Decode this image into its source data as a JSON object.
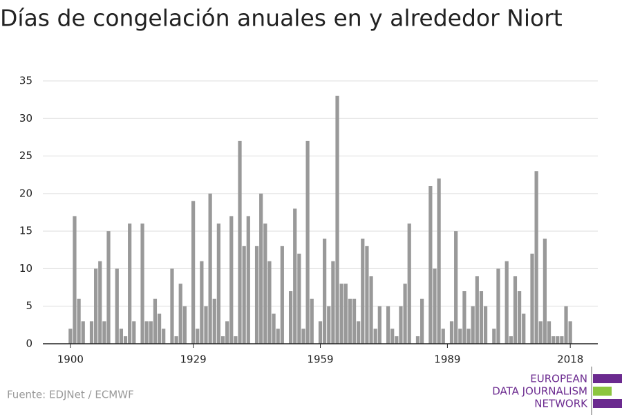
{
  "chart_data": {
    "type": "bar",
    "title": "Días de congelación anuales en y alrededor Niort",
    "source": "Fuente: EDJNet / ECMWF",
    "logo": [
      "EUROPEAN",
      "DATA JOURNALISM",
      "NETWORK"
    ],
    "color": "#999999",
    "x": [
      1900,
      1901,
      1902,
      1903,
      1904,
      1905,
      1906,
      1907,
      1908,
      1909,
      1910,
      1911,
      1912,
      1913,
      1914,
      1915,
      1916,
      1917,
      1918,
      1919,
      1920,
      1921,
      1922,
      1923,
      1924,
      1925,
      1926,
      1927,
      1928,
      1929,
      1930,
      1931,
      1932,
      1933,
      1934,
      1935,
      1936,
      1937,
      1938,
      1939,
      1940,
      1941,
      1942,
      1943,
      1944,
      1945,
      1946,
      1947,
      1948,
      1949,
      1950,
      1951,
      1952,
      1953,
      1954,
      1955,
      1956,
      1957,
      1958,
      1959,
      1960,
      1961,
      1962,
      1963,
      1964,
      1965,
      1966,
      1967,
      1968,
      1969,
      1970,
      1971,
      1972,
      1973,
      1974,
      1975,
      1976,
      1977,
      1978,
      1979,
      1980,
      1981,
      1982,
      1983,
      1984,
      1985,
      1986,
      1987,
      1988,
      1989,
      1990,
      1991,
      1992,
      1993,
      1994,
      1995,
      1996,
      1997,
      1998,
      1999,
      2000,
      2001,
      2002,
      2003,
      2004,
      2005,
      2006,
      2007,
      2008,
      2009,
      2010,
      2011,
      2012,
      2013,
      2014,
      2015,
      2016,
      2017,
      2018
    ],
    "values": [
      2,
      17,
      6,
      3,
      0,
      3,
      10,
      11,
      3,
      15,
      0,
      10,
      2,
      1,
      16,
      3,
      0,
      16,
      3,
      3,
      6,
      4,
      2,
      0,
      10,
      1,
      8,
      5,
      0,
      19,
      2,
      11,
      5,
      20,
      6,
      16,
      1,
      3,
      17,
      1,
      27,
      13,
      17,
      0,
      13,
      20,
      16,
      11,
      4,
      2,
      13,
      0,
      7,
      18,
      12,
      2,
      27,
      6,
      0,
      3,
      14,
      5,
      11,
      33,
      8,
      8,
      6,
      6,
      3,
      14,
      13,
      9,
      2,
      5,
      0,
      5,
      2,
      1,
      5,
      8,
      16,
      0,
      1,
      6,
      0,
      21,
      10,
      22,
      2,
      0,
      3,
      15,
      2,
      7,
      2,
      5,
      9,
      7,
      5,
      0,
      2,
      10,
      0,
      11,
      1,
      9,
      7,
      4,
      0,
      12,
      23,
      3,
      14,
      3,
      1,
      1,
      1,
      5,
      3
    ],
    "xlim": [
      1893.5,
      2024.5
    ],
    "xticks": [
      1900,
      1929,
      1959,
      1989,
      2018
    ],
    "ylim": [
      0,
      35
    ],
    "yticks": [
      0,
      5,
      10,
      15,
      20,
      25,
      30,
      35
    ],
    "grid": true
  }
}
